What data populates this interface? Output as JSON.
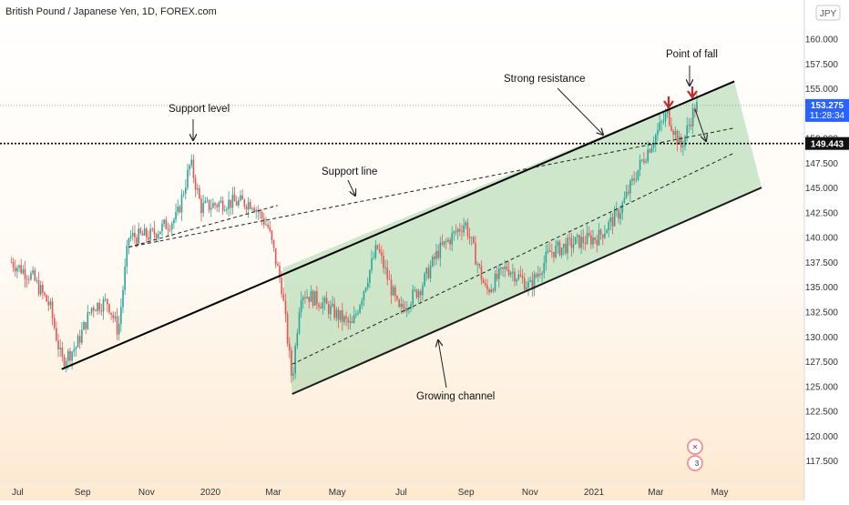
{
  "header": {
    "symbol_title": "British Pound / Japanese Yen, 1D, FOREX.com",
    "currency_label": "JPY"
  },
  "price_labels": {
    "current_price": "153.275",
    "countdown": "11:28:34",
    "marked_level": "149.443"
  },
  "annotations": {
    "support_level": "Support level",
    "support_line": "Support line",
    "strong_resistance": "Strong resistance",
    "point_of_fall": "Point of fall",
    "growing_channel": "Growing channel"
  },
  "watermark": {
    "badge_number": "3"
  },
  "colors": {
    "up": "#26a69a",
    "down": "#ef5350",
    "channel_fill": "#a5d6a7",
    "arrow_red": "#c62828",
    "label_blue": "#2962ff"
  },
  "chart_data": {
    "type": "candlestick",
    "title": "British Pound / Japanese Yen, 1D, FOREX.com",
    "y_axis": {
      "unit": "JPY",
      "range": [
        115.4,
        163.9
      ],
      "ticks": [
        "117.500",
        "120.000",
        "122.500",
        "125.000",
        "127.500",
        "130.000",
        "132.500",
        "135.000",
        "137.500",
        "140.000",
        "142.500",
        "145.000",
        "147.500",
        "150.000",
        "155.000",
        "157.500",
        "160.000"
      ]
    },
    "x_axis": {
      "ticks": [
        "Jul",
        "Sep",
        "Nov",
        "2020",
        "Mar",
        "May",
        "Jul",
        "Sep",
        "Nov",
        "2021",
        "Mar",
        "May"
      ]
    },
    "price_path": [
      {
        "date": "2019-06-25",
        "close": 137.5
      },
      {
        "date": "2019-07-15",
        "close": 136.0
      },
      {
        "date": "2019-08-01",
        "close": 133.0
      },
      {
        "date": "2019-08-12",
        "close": 127.5
      },
      {
        "date": "2019-08-26",
        "close": 129.0
      },
      {
        "date": "2019-09-10",
        "close": 133.0
      },
      {
        "date": "2019-09-25",
        "close": 133.5
      },
      {
        "date": "2019-10-05",
        "close": 130.5
      },
      {
        "date": "2019-10-15",
        "close": 140.0
      },
      {
        "date": "2019-11-05",
        "close": 140.2
      },
      {
        "date": "2019-11-30",
        "close": 142.0
      },
      {
        "date": "2019-12-13",
        "close": 147.5
      },
      {
        "date": "2019-12-23",
        "close": 143.0
      },
      {
        "date": "2020-01-15",
        "close": 143.5
      },
      {
        "date": "2020-02-10",
        "close": 143.5
      },
      {
        "date": "2020-02-25",
        "close": 141.0
      },
      {
        "date": "2020-03-09",
        "close": 135.0
      },
      {
        "date": "2020-03-19",
        "close": 125.5
      },
      {
        "date": "2020-03-27",
        "close": 134.5
      },
      {
        "date": "2020-04-15",
        "close": 133.5
      },
      {
        "date": "2020-05-15",
        "close": 131.0
      },
      {
        "date": "2020-06-08",
        "close": 139.0
      },
      {
        "date": "2020-06-29",
        "close": 132.5
      },
      {
        "date": "2020-07-20",
        "close": 135.0
      },
      {
        "date": "2020-08-05",
        "close": 138.5
      },
      {
        "date": "2020-08-31",
        "close": 141.5
      },
      {
        "date": "2020-09-20",
        "close": 134.5
      },
      {
        "date": "2020-10-10",
        "close": 137.0
      },
      {
        "date": "2020-11-01",
        "close": 135.0
      },
      {
        "date": "2020-11-20",
        "close": 138.5
      },
      {
        "date": "2020-12-15",
        "close": 139.5
      },
      {
        "date": "2021-01-05",
        "close": 140.0
      },
      {
        "date": "2021-01-25",
        "close": 142.5
      },
      {
        "date": "2021-02-15",
        "close": 147.5
      },
      {
        "date": "2021-03-02",
        "close": 150.5
      },
      {
        "date": "2021-03-12",
        "close": 152.5
      },
      {
        "date": "2021-03-25",
        "close": 149.0
      },
      {
        "date": "2021-04-07",
        "close": 153.0
      },
      {
        "date": "2021-04-10",
        "close": 153.275
      }
    ],
    "horizontal_level": 149.443,
    "last_price": 153.275,
    "channel": {
      "upper_line": {
        "from": {
          "date": "2020-03-10",
          "price": 136.9
        },
        "to": {
          "date": "2021-05-15",
          "price": 155.7
        }
      },
      "lower_line": {
        "from": {
          "date": "2020-03-19",
          "price": 124.2
        },
        "to": {
          "date": "2021-06-10",
          "price": 145.0
        }
      },
      "mid_line": {
        "from": {
          "date": "2020-03-19",
          "price": 127.2
        },
        "to": {
          "date": "2021-05-15",
          "price": 148.5
        }
      }
    },
    "resistance_line": {
      "from": {
        "date": "2019-08-12",
        "price": 126.7
      },
      "to": {
        "date": "2021-05-15",
        "price": 155.7
      }
    },
    "support_line": {
      "from": {
        "date": "2019-10-15",
        "price": 139.0
      },
      "to": {
        "date": "2021-05-15",
        "price": 151.0
      }
    },
    "annotations": [
      "Support level",
      "Support line",
      "Strong resistance",
      "Point of fall",
      "Growing channel"
    ]
  }
}
